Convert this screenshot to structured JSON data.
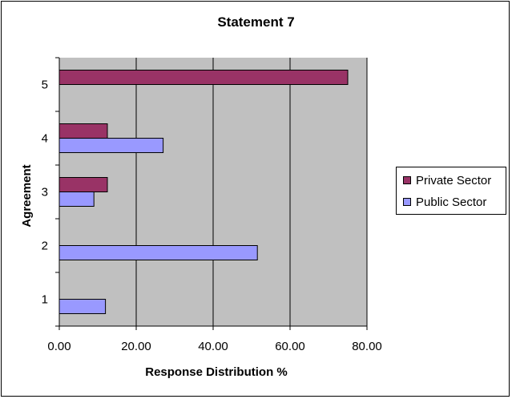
{
  "chart_data": {
    "type": "bar",
    "orientation": "horizontal",
    "title": "Statement 7",
    "xlabel": "Response Distribution %",
    "ylabel": "Agreement",
    "categories": [
      "1",
      "2",
      "3",
      "4",
      "5"
    ],
    "xlim": [
      0,
      80
    ],
    "xticks": [
      "0.00",
      "20.00",
      "40.00",
      "60.00",
      "80.00"
    ],
    "grid": true,
    "legend_position": "right",
    "series": [
      {
        "name": "Private Sector",
        "color": "#993366",
        "values": [
          0,
          0,
          12.5,
          12.5,
          75.0
        ]
      },
      {
        "name": "Public Sector",
        "color": "#9999ff",
        "values": [
          12.0,
          51.5,
          9.0,
          27.0,
          0
        ]
      }
    ]
  },
  "colors": {
    "plot_background": "#c0c0c0",
    "gridline": "#000000"
  }
}
